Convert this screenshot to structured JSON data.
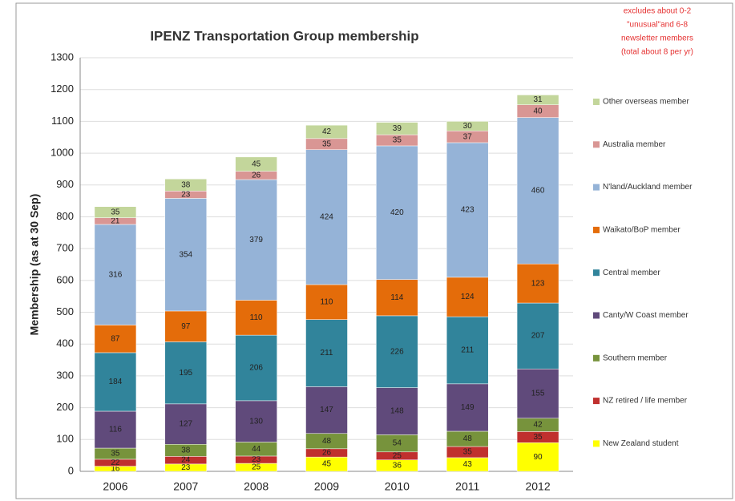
{
  "chart_data": {
    "type": "stacked_bar",
    "title": "IPENZ Transportation Group membership",
    "y_label": "Membership (as at 30 Sep)",
    "annotation": [
      "excludes about  0-2",
      "\"unusual\"and 6-8",
      "newsletter members",
      "(total about 8 per yr)"
    ],
    "categories": [
      "2006",
      "2007",
      "2008",
      "2009",
      "2010",
      "2011",
      "2012"
    ],
    "series": [
      {
        "name": "New Zealand student",
        "color": "#ffff00",
        "values": [
          16,
          23,
          25,
          45,
          36,
          43,
          90
        ]
      },
      {
        "name": "NZ retired / life member",
        "color": "#c0302e",
        "values": [
          22,
          24,
          23,
          26,
          25,
          35,
          35
        ]
      },
      {
        "name": "Southern member",
        "color": "#77933c",
        "values": [
          35,
          38,
          44,
          48,
          54,
          48,
          42
        ]
      },
      {
        "name": "Canty/W Coast member",
        "color": "#604a7b",
        "values": [
          116,
          127,
          130,
          147,
          148,
          149,
          155
        ]
      },
      {
        "name": "Central member",
        "color": "#31849b",
        "values": [
          184,
          195,
          206,
          211,
          226,
          211,
          207
        ]
      },
      {
        "name": "Waikato/BoP member",
        "color": "#e46c0a",
        "values": [
          87,
          97,
          110,
          110,
          114,
          124,
          123
        ]
      },
      {
        "name": "N'land/Auckland member",
        "color": "#95b3d7",
        "values": [
          316,
          354,
          379,
          424,
          420,
          423,
          460
        ]
      },
      {
        "name": "Australia member",
        "color": "#d99694",
        "values": [
          21,
          23,
          26,
          35,
          35,
          37,
          40
        ]
      },
      {
        "name": "Other overseas member",
        "color": "#c3d69b",
        "values": [
          35,
          38,
          45,
          42,
          39,
          30,
          31
        ]
      }
    ],
    "ylim": [
      0,
      1300
    ],
    "yticks": [
      0,
      100,
      200,
      300,
      400,
      500,
      600,
      700,
      800,
      900,
      1000,
      1100,
      1200,
      1300
    ],
    "grid": true,
    "legend": "right"
  }
}
